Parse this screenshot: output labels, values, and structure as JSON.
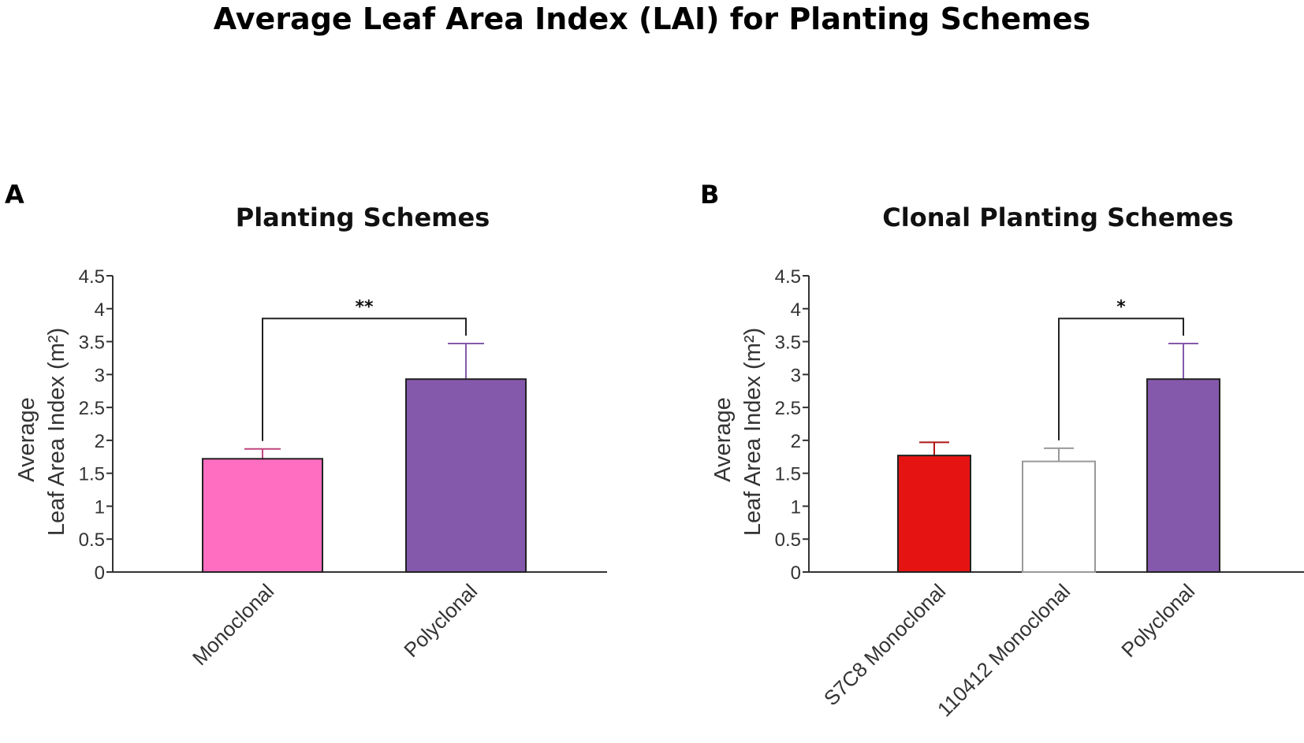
{
  "title": "Average Leaf Area Index (LAI) for Planting Schemes",
  "chart_data": [
    {
      "panel": "A",
      "type": "bar",
      "title": "Planting Schemes",
      "ylabel_line1": "Average",
      "ylabel_line2": "Leaf Area Index (m²)",
      "ylim": [
        0,
        4.5
      ],
      "yticks": [
        "0",
        "0.5",
        "1",
        "1.5",
        "2",
        "2.5",
        "3",
        "3.5",
        "4",
        "4.5"
      ],
      "categories": [
        "Monoclonal",
        "Polyclonal"
      ],
      "values": [
        1.72,
        2.93
      ],
      "errors": [
        0.15,
        0.54
      ],
      "colors": [
        "#ff6ec0",
        "#8459ab"
      ],
      "error_colors": [
        "#c0467f",
        "#8459ab"
      ],
      "significance": [
        {
          "from": 0,
          "to": 1,
          "label": "**",
          "y": 3.85
        }
      ]
    },
    {
      "panel": "B",
      "type": "bar",
      "title": "Clonal Planting Schemes",
      "ylabel_line1": "Average",
      "ylabel_line2": "Leaf Area Index (m²)",
      "ylim": [
        0,
        4.5
      ],
      "yticks": [
        "0",
        "0.5",
        "1",
        "1.5",
        "2",
        "2.5",
        "3",
        "3.5",
        "4",
        "4.5"
      ],
      "categories": [
        "S7C8 Monoclonal",
        "110412 Monoclonal",
        "Polyclonal"
      ],
      "values": [
        1.77,
        1.68,
        2.93
      ],
      "errors": [
        0.2,
        0.2,
        0.54
      ],
      "colors": [
        "#e51413",
        "#ffffff",
        "#8459ab"
      ],
      "error_colors": [
        "#b11515",
        "#999999",
        "#8459ab"
      ],
      "significance": [
        {
          "from": 1,
          "to": 2,
          "label": "*",
          "y": 3.85
        }
      ]
    }
  ]
}
